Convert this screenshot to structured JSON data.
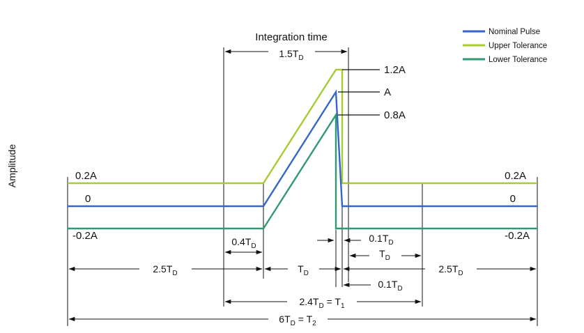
{
  "axis": {
    "ylabel": "Amplitude"
  },
  "title": "Integration time",
  "legend": [
    {
      "label": "Nominal Pulse",
      "color": "#3366cc"
    },
    {
      "label": "Upper Tolerance",
      "color": "#a6cc2f"
    },
    {
      "label": "Lower Tolerance",
      "color": "#2e9a6e"
    }
  ],
  "levels": {
    "upper_left": "0.2A",
    "zero_left": "0",
    "lower_left": "-0.2A",
    "upper_right": "0.2A",
    "zero_right": "0",
    "lower_right": "-0.2A"
  },
  "peaks": {
    "upper": "1.2A",
    "nominal": "A",
    "lower": "0.8A"
  },
  "dimensions": {
    "integration": {
      "base": "1.5T",
      "sub": "D",
      "tail": ""
    },
    "rise_offset": {
      "base": "0.4T",
      "sub": "D",
      "tail": ""
    },
    "fall_top": {
      "base": "0.1T",
      "sub": "D",
      "tail": ""
    },
    "td_right": {
      "base": "T",
      "sub": "D",
      "tail": ""
    },
    "left_flat": {
      "base": "2.5T",
      "sub": "D",
      "tail": ""
    },
    "td_center": {
      "base": "T",
      "sub": "D",
      "tail": ""
    },
    "right_flat": {
      "base": "2.5T",
      "sub": "D",
      "tail": ""
    },
    "fall_bottom": {
      "base": "0.1T",
      "sub": "D",
      "tail": ""
    },
    "t1": {
      "base": "2.4T",
      "sub": "D",
      "tail": " = T",
      "tail_sub": "1"
    },
    "t2": {
      "base": "6T",
      "sub": "D",
      "tail": " = T",
      "tail_sub": "2"
    }
  },
  "colors": {
    "nominal": "#3366cc",
    "upper": "#a6cc2f",
    "lower": "#2e9a6e",
    "ink": "#111111"
  }
}
